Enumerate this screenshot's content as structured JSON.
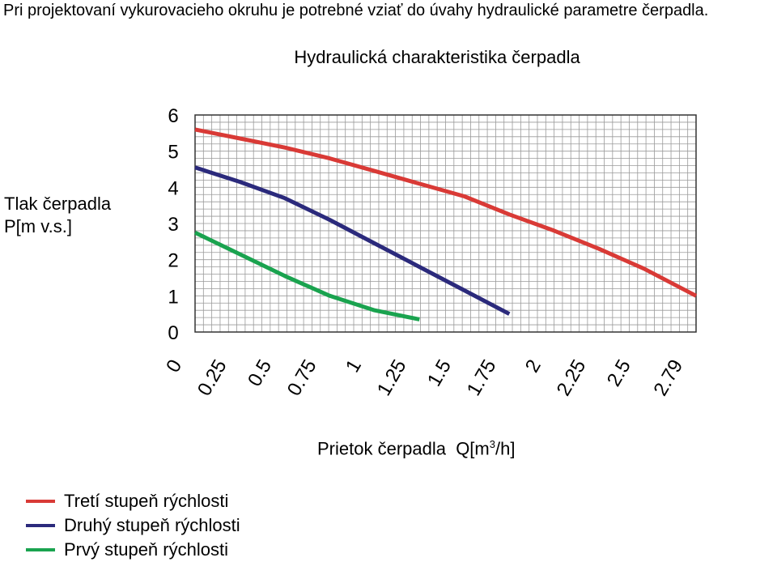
{
  "intro_text": "Pri projektovaní vykurovacieho okruhu je potrebné vziať do úvahy hydraulické parametre čerpadla.",
  "chart_data": {
    "type": "line",
    "title": "Hydraulická charakteristika čerpadla",
    "ylabel_line1": "Tlak čerpadla",
    "ylabel_line2": "P[m v.s.]",
    "xlabel_main": "Prietok čerpadla  Q[m",
    "xlabel_sup": "3",
    "xlabel_end": "/h]",
    "x_ticks": [
      "0",
      "0.25",
      "0.5",
      "0.75",
      "1",
      "1.25",
      "1.5",
      "1.75",
      "2",
      "2.25",
      "2.5",
      "2.79"
    ],
    "y_ticks": [
      "0",
      "1",
      "2",
      "3",
      "4",
      "5",
      "6"
    ],
    "xlim": [
      0,
      2.79
    ],
    "ylim": [
      0,
      6
    ],
    "grid": true,
    "legend_position": "bottom-left",
    "series": [
      {
        "name": "Tretí stupeň rýchlosti",
        "color": "#d93a36",
        "points": [
          [
            0,
            5.6
          ],
          [
            0.25,
            5.35
          ],
          [
            0.5,
            5.1
          ],
          [
            0.75,
            4.8
          ],
          [
            1,
            4.45
          ],
          [
            1.25,
            4.1
          ],
          [
            1.5,
            3.75
          ],
          [
            1.75,
            3.25
          ],
          [
            2,
            2.8
          ],
          [
            2.25,
            2.3
          ],
          [
            2.5,
            1.75
          ],
          [
            2.79,
            1.0
          ]
        ]
      },
      {
        "name": "Druhý stupeň rýchlosti",
        "color": "#2b2a7c",
        "points": [
          [
            0,
            4.55
          ],
          [
            0.25,
            4.15
          ],
          [
            0.5,
            3.7
          ],
          [
            0.75,
            3.1
          ],
          [
            1,
            2.45
          ],
          [
            1.25,
            1.8
          ],
          [
            1.5,
            1.15
          ],
          [
            1.75,
            0.5
          ]
        ]
      },
      {
        "name": "Prvý stupeň rýchlosti",
        "color": "#1aa34f",
        "points": [
          [
            0,
            2.75
          ],
          [
            0.25,
            2.15
          ],
          [
            0.5,
            1.55
          ],
          [
            0.75,
            1.0
          ],
          [
            1,
            0.6
          ],
          [
            1.25,
            0.35
          ]
        ]
      }
    ]
  }
}
